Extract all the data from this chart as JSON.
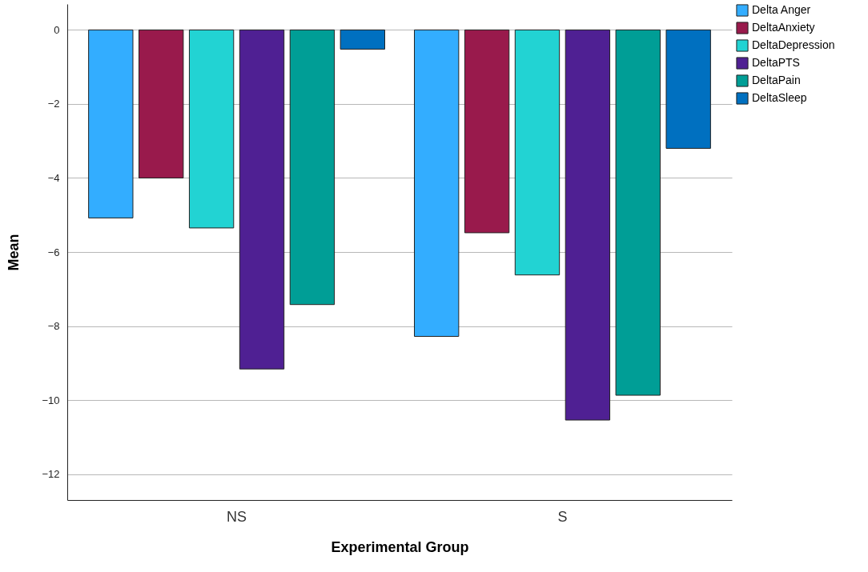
{
  "chart_data": {
    "type": "bar",
    "xlabel": "Experimental Group",
    "ylabel": "Mean",
    "categories": [
      "NS",
      "S"
    ],
    "series": [
      {
        "name": "Delta Anger",
        "color": "#33adff",
        "values": [
          -5.08,
          -8.28
        ]
      },
      {
        "name": "DeltaAnxiety",
        "color": "#991a4c",
        "values": [
          -4.0,
          -5.48
        ]
      },
      {
        "name": "DeltaDepression",
        "color": "#22d3d3",
        "values": [
          -5.35,
          -6.62
        ]
      },
      {
        "name": "DeltaPTS",
        "color": "#4f2093",
        "values": [
          -9.16,
          -10.54
        ]
      },
      {
        "name": "DeltaPain",
        "color": "#009e96",
        "values": [
          -7.42,
          -9.87
        ]
      },
      {
        "name": "DeltaSleep",
        "color": "#0070c0",
        "values": [
          -0.52,
          -3.2
        ]
      }
    ],
    "ylim": [
      -12.7,
      0.7
    ],
    "yticks": [
      -12,
      -10,
      -8,
      -6,
      -4,
      -2,
      0
    ],
    "grid": "y",
    "legend": "top right"
  }
}
